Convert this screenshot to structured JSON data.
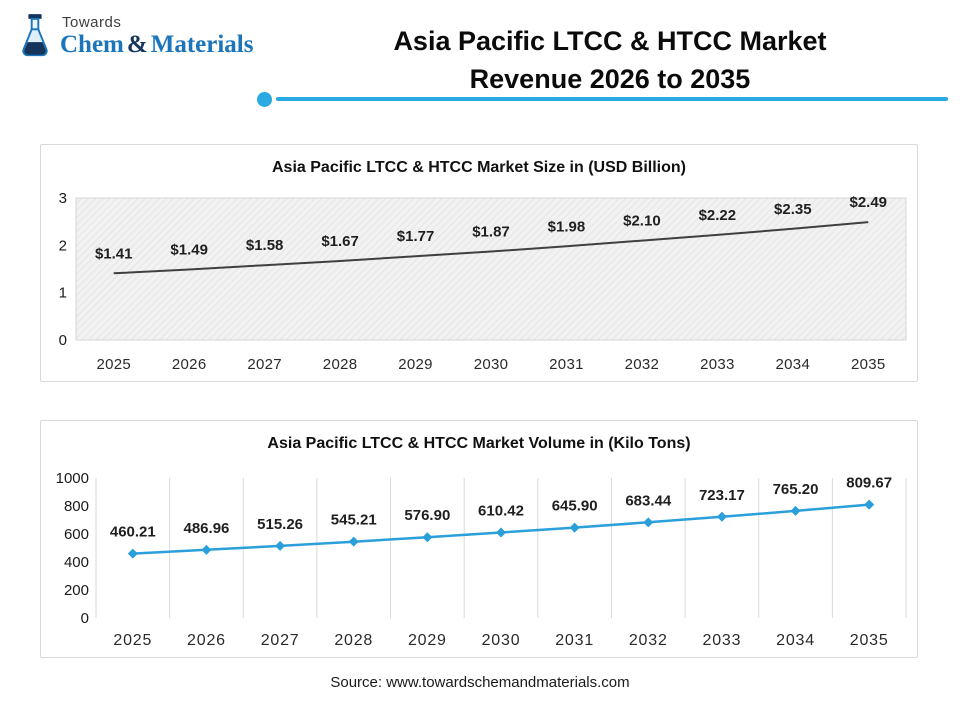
{
  "brand": {
    "top": "Towards",
    "name_parts": [
      "Chem",
      "&",
      "Materials"
    ]
  },
  "header": {
    "title_line1": "Asia Pacific LTCC & HTCC Market",
    "title_line2": "Revenue 2026 to 2035"
  },
  "footer": {
    "source": "Source: www.towardschemandmaterials.com"
  },
  "colors": {
    "accent": "#29abe2",
    "brand_blue": "#1b75bb",
    "brand_dark": "#16355d",
    "size_line": "#404040",
    "volume_line": "#2b9fd9",
    "grid": "#d9d9d9",
    "label_text": "#1f1f1f",
    "tick_text": "#1a1a1a"
  },
  "chart_data": [
    {
      "type": "line",
      "title": "Asia Pacific LTCC & HTCC Market Size in (USD Billion)",
      "categories": [
        "2025",
        "2026",
        "2027",
        "2028",
        "2029",
        "2030",
        "2031",
        "2032",
        "2033",
        "2034",
        "2035"
      ],
      "values": [
        1.41,
        1.49,
        1.58,
        1.67,
        1.77,
        1.87,
        1.98,
        2.1,
        2.22,
        2.35,
        2.49
      ],
      "labels": [
        "$1.41",
        "$1.49",
        "$1.58",
        "$1.67",
        "$1.77",
        "$1.87",
        "$1.98",
        "$2.10",
        "$2.22",
        "$2.35",
        "$2.49"
      ],
      "xlabel": "",
      "ylabel": "",
      "ylim": [
        0,
        3
      ],
      "yticks": [
        0,
        1,
        2,
        3
      ],
      "grid": "hatched-plot-background",
      "legend": "none",
      "marker": "none"
    },
    {
      "type": "line",
      "title": "Asia Pacific LTCC & HTCC Market Volume in (Kilo Tons)",
      "categories": [
        "2025",
        "2026",
        "2027",
        "2028",
        "2029",
        "2030",
        "2031",
        "2032",
        "2033",
        "2034",
        "2035"
      ],
      "values": [
        460.21,
        486.96,
        515.26,
        545.21,
        576.9,
        610.42,
        645.9,
        683.44,
        723.17,
        765.2,
        809.67
      ],
      "labels": [
        "460.21",
        "486.96",
        "515.26",
        "545.21",
        "576.90",
        "610.42",
        "645.90",
        "683.44",
        "723.17",
        "765.20",
        "809.67"
      ],
      "xlabel": "",
      "ylabel": "",
      "ylim": [
        0,
        1000
      ],
      "yticks": [
        0,
        200,
        400,
        600,
        800,
        1000
      ],
      "grid": "vertical",
      "legend": "none",
      "marker": "diamond"
    }
  ]
}
